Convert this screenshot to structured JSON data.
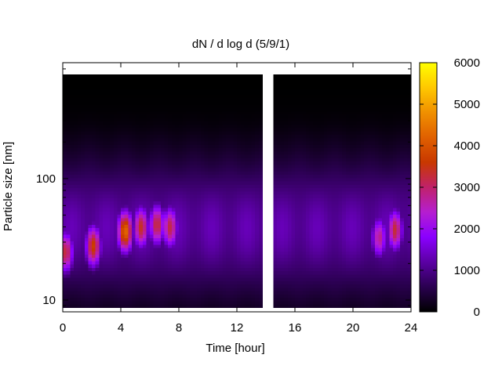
{
  "chart_data": {
    "type": "heatmap",
    "title": "dN / d log d (5/9/1)",
    "xlabel": "Time [hour]",
    "ylabel": "Particle size [nm]",
    "x_range": [
      0,
      24
    ],
    "y_range": [
      8,
      900
    ],
    "y_scale": "log",
    "x_ticks": [
      {
        "value": 0,
        "label": "0"
      },
      {
        "value": 4,
        "label": "4"
      },
      {
        "value": 8,
        "label": "8"
      },
      {
        "value": 12,
        "label": "12"
      },
      {
        "value": 16,
        "label": "16"
      },
      {
        "value": 20,
        "label": "20"
      },
      {
        "value": 24,
        "label": "24"
      }
    ],
    "y_ticks": [
      {
        "value": 10,
        "label": "10"
      },
      {
        "value": 100,
        "label": "100"
      }
    ],
    "colorbar": {
      "range": [
        0,
        6000
      ],
      "ticks": [
        {
          "value": 0,
          "label": "0"
        },
        {
          "value": 1000,
          "label": "1000"
        },
        {
          "value": 2000,
          "label": "2000"
        },
        {
          "value": 3000,
          "label": "3000"
        },
        {
          "value": 4000,
          "label": "4000"
        },
        {
          "value": 5000,
          "label": "5000"
        },
        {
          "value": 6000,
          "label": "6000"
        }
      ],
      "colormap": "black-purple-red-orange-yellow"
    },
    "data_gap_hours": [
      13.7,
      14.4
    ],
    "upper_size_limit_nm": 720,
    "lower_size_limit_nm": 8.7,
    "background_level": 1200,
    "peaks": [
      {
        "time_hour": 0.2,
        "size_nm": 25,
        "value": 3300
      },
      {
        "time_hour": 2.1,
        "size_nm": 28,
        "value": 3700
      },
      {
        "time_hour": 4.3,
        "size_nm": 37,
        "value": 4300
      },
      {
        "time_hour": 5.4,
        "size_nm": 40,
        "value": 3400
      },
      {
        "time_hour": 6.5,
        "size_nm": 42,
        "value": 3300
      },
      {
        "time_hour": 7.4,
        "size_nm": 40,
        "value": 3200
      },
      {
        "time_hour": 22.9,
        "size_nm": 38,
        "value": 3300
      },
      {
        "time_hour": 21.8,
        "size_nm": 33,
        "value": 2800
      }
    ],
    "grid": false
  }
}
